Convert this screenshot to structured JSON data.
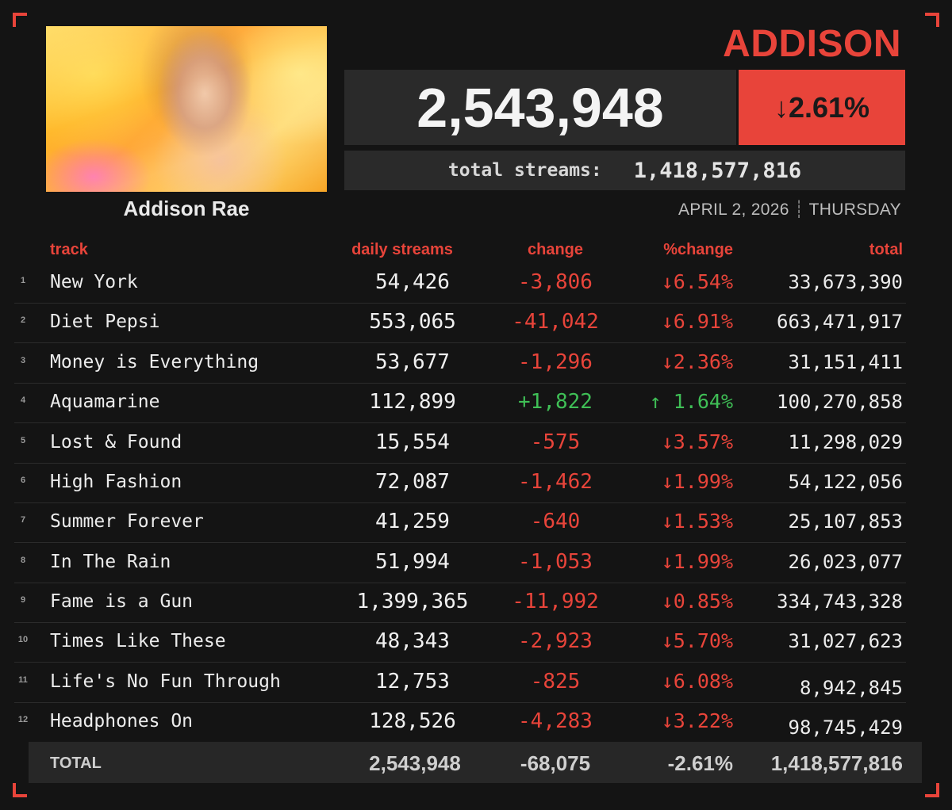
{
  "header": {
    "artist_banner": "ADDISON",
    "artist_name": "Addison Rae",
    "daily_streams": "2,543,948",
    "daily_change_pct": "↓2.61%",
    "total_streams_label": "total streams:",
    "total_streams": "1,418,577,816",
    "date": "APRIL 2, 2026",
    "date_separator": "┊",
    "weekday": "THURSDAY"
  },
  "table": {
    "columns": [
      "track",
      "daily streams",
      "change",
      "%change",
      "total"
    ],
    "rows": [
      {
        "rank": "1",
        "track": "New York",
        "daily": "54,426",
        "change": "-3,806",
        "pct": "↓6.54%",
        "total": "33,673,390",
        "dir": "neg"
      },
      {
        "rank": "2",
        "track": "Diet Pepsi",
        "daily": "553,065",
        "change": "-41,042",
        "pct": "↓6.91%",
        "total": "663,471,917",
        "dir": "neg"
      },
      {
        "rank": "3",
        "track": "Money is Everything",
        "daily": "53,677",
        "change": "-1,296",
        "pct": "↓2.36%",
        "total": "31,151,411",
        "dir": "neg"
      },
      {
        "rank": "4",
        "track": "Aquamarine",
        "daily": "112,899",
        "change": "+1,822",
        "pct": "↑ 1.64%",
        "total": "100,270,858",
        "dir": "pos"
      },
      {
        "rank": "5",
        "track": "Lost & Found",
        "daily": "15,554",
        "change": "-575",
        "pct": "↓3.57%",
        "total": "11,298,029",
        "dir": "neg"
      },
      {
        "rank": "6",
        "track": "High Fashion",
        "daily": "72,087",
        "change": "-1,462",
        "pct": "↓1.99%",
        "total": "54,122,056",
        "dir": "neg"
      },
      {
        "rank": "7",
        "track": "Summer Forever",
        "daily": "41,259",
        "change": "-640",
        "pct": "↓1.53%",
        "total": "25,107,853",
        "dir": "neg"
      },
      {
        "rank": "8",
        "track": "In The Rain",
        "daily": "51,994",
        "change": "-1,053",
        "pct": "↓1.99%",
        "total": "26,023,077",
        "dir": "neg"
      },
      {
        "rank": "9",
        "track": "Fame is a Gun",
        "daily": "1,399,365",
        "change": "-11,992",
        "pct": "↓0.85%",
        "total": "334,743,328",
        "dir": "neg"
      },
      {
        "rank": "10",
        "track": "Times Like These",
        "daily": "48,343",
        "change": "-2,923",
        "pct": "↓5.70%",
        "total": "31,027,623",
        "dir": "neg"
      },
      {
        "rank": "11",
        "track": "Life's No Fun Through",
        "daily": "12,753",
        "change": "-825",
        "pct": "↓6.08%",
        "total": "8,942,845",
        "dir": "neg"
      },
      {
        "rank": "12",
        "track": "Headphones On",
        "daily": "128,526",
        "change": "-4,283",
        "pct": "↓3.22%",
        "total": "98,745,429",
        "dir": "neg"
      }
    ],
    "totals": {
      "label": "TOTAL",
      "daily": "2,543,948",
      "change": "-68,075",
      "pct": "-2.61%",
      "total": "1,418,577,816"
    }
  },
  "colors": {
    "accent": "#e8443a",
    "positive": "#3fbf56",
    "background": "#141414",
    "panel": "#2a2a2a"
  }
}
